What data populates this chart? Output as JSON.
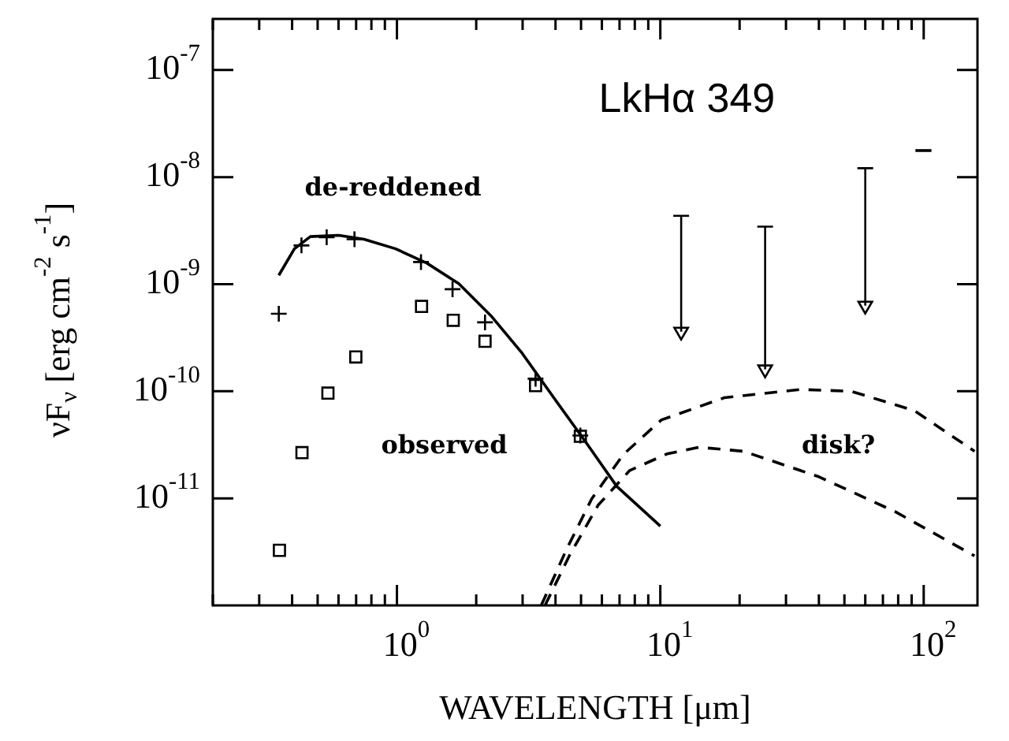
{
  "chart_data": {
    "type": "scatter",
    "title": "LkHα 349",
    "xlabel": "WAVELENGTH [μm]",
    "ylabel": "νF$_{ν}$ [erg cm$^{-2}$ s$^{-1}$]",
    "log": "xy",
    "xlim": [
      0.2,
      160
    ],
    "ylim": [
      1e-12,
      3e-07
    ],
    "xticks": [
      {
        "value": 0.2,
        "label": null
      },
      {
        "value": 0.3,
        "label": null
      },
      {
        "value": 0.4,
        "label": null
      },
      {
        "value": 0.5,
        "label": null
      },
      {
        "value": 0.6,
        "label": null
      },
      {
        "value": 0.7,
        "label": null
      },
      {
        "value": 0.8,
        "label": null
      },
      {
        "value": 0.9,
        "label": null
      },
      {
        "value": 1,
        "label": "10$^{0}$"
      },
      {
        "value": 2,
        "label": null
      },
      {
        "value": 3,
        "label": null
      },
      {
        "value": 4,
        "label": null
      },
      {
        "value": 5,
        "label": null
      },
      {
        "value": 6,
        "label": null
      },
      {
        "value": 7,
        "label": null
      },
      {
        "value": 8,
        "label": null
      },
      {
        "value": 9,
        "label": null
      },
      {
        "value": 10,
        "label": "10$^{1}$"
      },
      {
        "value": 20,
        "label": null
      },
      {
        "value": 30,
        "label": null
      },
      {
        "value": 40,
        "label": null
      },
      {
        "value": 50,
        "label": null
      },
      {
        "value": 60,
        "label": null
      },
      {
        "value": 70,
        "label": null
      },
      {
        "value": 80,
        "label": null
      },
      {
        "value": 90,
        "label": null
      },
      {
        "value": 100,
        "label": "10$^{2}$"
      }
    ],
    "yticks": [
      {
        "value": 1e-11,
        "label": "10$^{-11}$"
      },
      {
        "value": 1e-10,
        "label": "10$^{-10}$"
      },
      {
        "value": 1e-09,
        "label": "10$^{-9}$"
      },
      {
        "value": 1e-08,
        "label": "10$^{-8}$"
      },
      {
        "value": 1e-07,
        "label": "10$^{-7}$"
      }
    ],
    "grid": false,
    "legend": false,
    "annotations": [
      "de-reddened",
      "observed",
      "disk?"
    ],
    "series": [
      {
        "marker": "cross",
        "color": "#000000",
        "x": [
          0.356,
          0.434,
          0.541,
          0.69,
          1.234,
          1.626,
          2.16,
          3.36,
          4.97
        ],
        "values": [
          5.3e-10,
          2.3e-09,
          2.74e-09,
          2.63e-09,
          1.61e-09,
          8.97e-10,
          4.4e-10,
          1.31e-10,
          3.86e-11
        ]
      },
      {
        "marker": "square",
        "color": "#000000",
        "x": [
          0.358,
          0.436,
          0.547,
          0.698,
          1.24,
          1.636,
          2.16,
          3.36,
          4.97
        ],
        "values": [
          3.27e-12,
          2.67e-11,
          9.6e-11,
          2.09e-10,
          6.2e-10,
          4.6e-10,
          2.93e-10,
          1.13e-10,
          3.8e-11
        ]
      },
      {
        "type": "line",
        "marker": "none",
        "line_style": "solid",
        "color": "#000000",
        "x": [
          0.356,
          0.408,
          0.469,
          0.601,
          0.75,
          0.989,
          1.3,
          1.72,
          2.27,
          2.99,
          3.94,
          5.19,
          6.84,
          10
        ],
        "values": [
          1.21e-09,
          2.14e-09,
          2.78e-09,
          2.86e-09,
          2.63e-09,
          2.14e-09,
          1.57e-09,
          1.01e-09,
          5.1e-10,
          2.26e-10,
          8.7e-11,
          3.4e-11,
          1.29e-11,
          5.5e-12
        ]
      },
      {
        "type": "line",
        "marker": "none",
        "line_style": "dashed",
        "color": "#000000",
        "x": [
          3.53,
          4.4,
          5.49,
          7.24,
          10.1,
          17.5,
          34,
          53,
          92,
          156
        ],
        "values": [
          1e-12,
          3.32e-12,
          9.9e-12,
          2.57e-11,
          5.4e-11,
          8.7e-11,
          1.04e-10,
          1e-10,
          6.6e-11,
          2.75e-11
        ]
      },
      {
        "type": "line",
        "marker": "none",
        "line_style": "dashed",
        "color": "#000000",
        "x": [
          3.65,
          4.51,
          5.8,
          7.65,
          10.6,
          14,
          20.7,
          40,
          78,
          156
        ],
        "values": [
          1e-12,
          2.9e-12,
          8.6e-12,
          1.82e-11,
          2.6e-11,
          3e-11,
          2.75e-11,
          1.59e-11,
          7.5e-12,
          2.9e-12
        ]
      },
      {
        "marker": "triangle",
        "color": "#000000",
        "x": [
          12,
          25,
          60
        ],
        "values": [
          3.6e-10,
          1.6e-10,
          6.3e-10
        ],
        "errors": [
          [
            3.6e-10,
            4.35e-09
          ],
          [
            1.6e-10,
            3.45e-09
          ],
          [
            6.3e-10,
            1.21e-08
          ]
        ]
      },
      {
        "type": "line",
        "marker": "none",
        "line_style": "solid",
        "color": "#000000",
        "x": [
          93,
          107
        ],
        "values": [
          1.77e-08,
          1.77e-08
        ]
      }
    ]
  }
}
